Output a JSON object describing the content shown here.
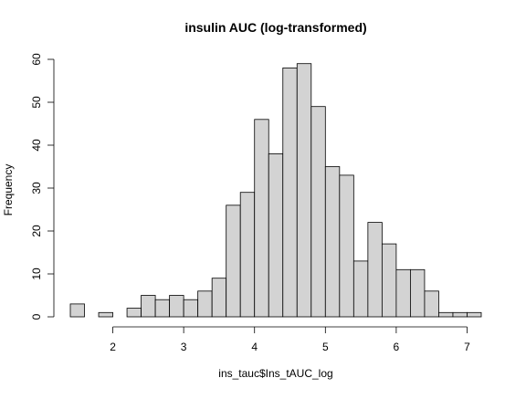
{
  "chart_data": {
    "type": "bar",
    "subtype": "histogram",
    "title": "insulin AUC (log-transformed)",
    "xlabel": "ins_tauc$Ins_tAUC_log",
    "ylabel": "Frequency",
    "xlim": [
      1.4,
      7.2
    ],
    "ylim": [
      0,
      60
    ],
    "xticks": [
      2,
      3,
      4,
      5,
      6,
      7
    ],
    "yticks": [
      0,
      10,
      20,
      30,
      40,
      50,
      60
    ],
    "bin_width": 0.2,
    "bins": [
      {
        "x0": 1.4,
        "x1": 1.6,
        "count": 3
      },
      {
        "x0": 1.6,
        "x1": 1.8,
        "count": 0
      },
      {
        "x0": 1.8,
        "x1": 2.0,
        "count": 1
      },
      {
        "x0": 2.0,
        "x1": 2.2,
        "count": 0
      },
      {
        "x0": 2.2,
        "x1": 2.4,
        "count": 2
      },
      {
        "x0": 2.4,
        "x1": 2.6,
        "count": 5
      },
      {
        "x0": 2.6,
        "x1": 2.8,
        "count": 4
      },
      {
        "x0": 2.8,
        "x1": 3.0,
        "count": 5
      },
      {
        "x0": 3.0,
        "x1": 3.2,
        "count": 4
      },
      {
        "x0": 3.2,
        "x1": 3.4,
        "count": 6
      },
      {
        "x0": 3.4,
        "x1": 3.6,
        "count": 9
      },
      {
        "x0": 3.6,
        "x1": 3.8,
        "count": 26
      },
      {
        "x0": 3.8,
        "x1": 4.0,
        "count": 29
      },
      {
        "x0": 4.0,
        "x1": 4.2,
        "count": 46
      },
      {
        "x0": 4.2,
        "x1": 4.4,
        "count": 38
      },
      {
        "x0": 4.4,
        "x1": 4.6,
        "count": 58
      },
      {
        "x0": 4.6,
        "x1": 4.8,
        "count": 59
      },
      {
        "x0": 4.8,
        "x1": 5.0,
        "count": 49
      },
      {
        "x0": 5.0,
        "x1": 5.2,
        "count": 35
      },
      {
        "x0": 5.2,
        "x1": 5.4,
        "count": 33
      },
      {
        "x0": 5.4,
        "x1": 5.6,
        "count": 13
      },
      {
        "x0": 5.6,
        "x1": 5.8,
        "count": 22
      },
      {
        "x0": 5.8,
        "x1": 6.0,
        "count": 17
      },
      {
        "x0": 6.0,
        "x1": 6.2,
        "count": 11
      },
      {
        "x0": 6.2,
        "x1": 6.4,
        "count": 11
      },
      {
        "x0": 6.4,
        "x1": 6.6,
        "count": 6
      },
      {
        "x0": 6.6,
        "x1": 6.8,
        "count": 1
      },
      {
        "x0": 6.8,
        "x1": 7.0,
        "count": 1
      },
      {
        "x0": 7.0,
        "x1": 7.2,
        "count": 1
      }
    ],
    "bar_fill": "#d3d3d3",
    "bar_stroke": "#000000",
    "grid": false,
    "legend": "none"
  }
}
